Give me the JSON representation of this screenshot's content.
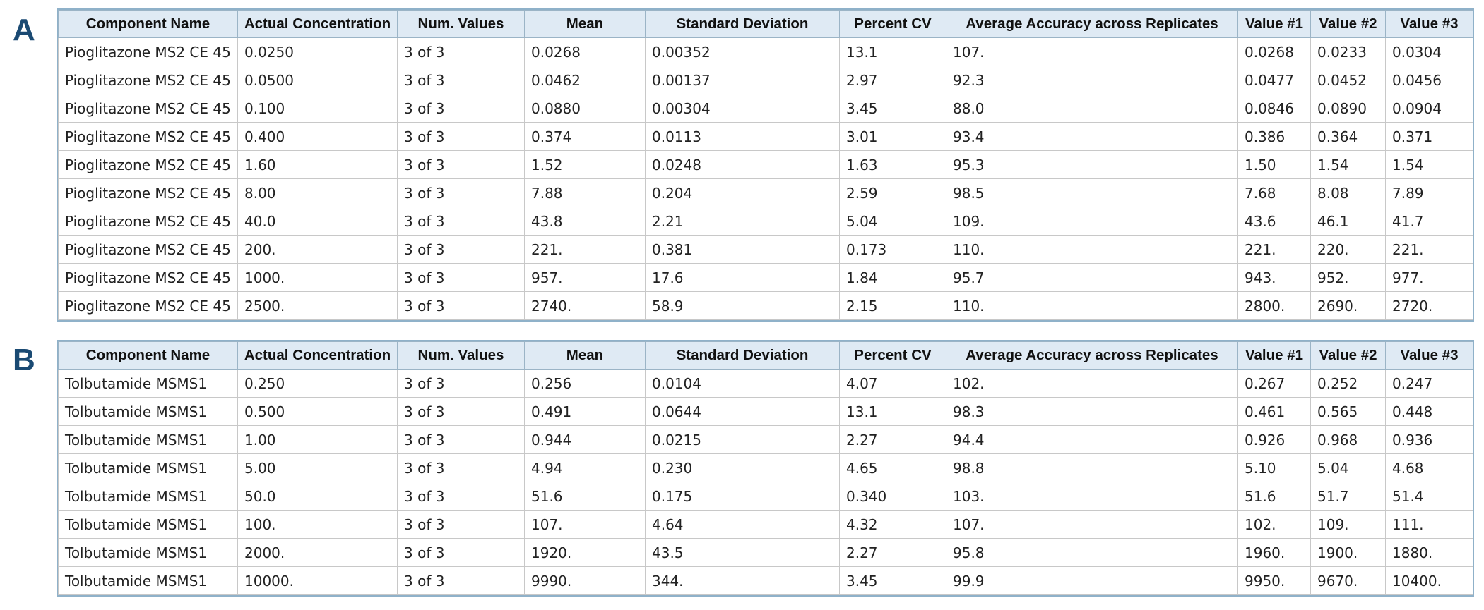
{
  "panels": [
    {
      "letter": "A",
      "columns": [
        "Component Name",
        "Actual Concentration",
        "Num. Values",
        "Mean",
        "Standard Deviation",
        "Percent CV",
        "Average Accuracy across Replicates",
        "Value #1",
        "Value #2",
        "Value #3"
      ],
      "rows": [
        [
          "Pioglitazone MS2 CE 45",
          "0.0250",
          "3 of 3",
          "0.0268",
          "0.00352",
          "13.1",
          "107.",
          "0.0268",
          "0.0233",
          "0.0304"
        ],
        [
          "Pioglitazone MS2 CE 45",
          "0.0500",
          "3 of 3",
          "0.0462",
          "0.00137",
          "2.97",
          "92.3",
          "0.0477",
          "0.0452",
          "0.0456"
        ],
        [
          "Pioglitazone MS2 CE 45",
          "0.100",
          "3 of 3",
          "0.0880",
          "0.00304",
          "3.45",
          "88.0",
          "0.0846",
          "0.0890",
          "0.0904"
        ],
        [
          "Pioglitazone MS2 CE 45",
          "0.400",
          "3 of 3",
          "0.374",
          "0.0113",
          "3.01",
          "93.4",
          "0.386",
          "0.364",
          "0.371"
        ],
        [
          "Pioglitazone MS2 CE 45",
          "1.60",
          "3 of 3",
          "1.52",
          "0.0248",
          "1.63",
          "95.3",
          "1.50",
          "1.54",
          "1.54"
        ],
        [
          "Pioglitazone MS2 CE 45",
          "8.00",
          "3 of 3",
          "7.88",
          "0.204",
          "2.59",
          "98.5",
          "7.68",
          "8.08",
          "7.89"
        ],
        [
          "Pioglitazone MS2 CE 45",
          "40.0",
          "3 of 3",
          "43.8",
          "2.21",
          "5.04",
          "109.",
          "43.6",
          "46.1",
          "41.7"
        ],
        [
          "Pioglitazone MS2 CE 45",
          "200.",
          "3 of 3",
          "221.",
          "0.381",
          "0.173",
          "110.",
          "221.",
          "220.",
          "221."
        ],
        [
          "Pioglitazone MS2 CE 45",
          "1000.",
          "3 of 3",
          "957.",
          "17.6",
          "1.84",
          "95.7",
          "943.",
          "952.",
          "977."
        ],
        [
          "Pioglitazone MS2 CE 45",
          "2500.",
          "3 of 3",
          "2740.",
          "58.9",
          "2.15",
          "110.",
          "2800.",
          "2690.",
          "2720."
        ]
      ]
    },
    {
      "letter": "B",
      "columns": [
        "Component Name",
        "Actual Concentration",
        "Num. Values",
        "Mean",
        "Standard Deviation",
        "Percent CV",
        "Average Accuracy across Replicates",
        "Value #1",
        "Value #2",
        "Value #3"
      ],
      "rows": [
        [
          "Tolbutamide MSMS1",
          "0.250",
          "3 of 3",
          "0.256",
          "0.0104",
          "4.07",
          "102.",
          "0.267",
          "0.252",
          "0.247"
        ],
        [
          "Tolbutamide MSMS1",
          "0.500",
          "3 of 3",
          "0.491",
          "0.0644",
          "13.1",
          "98.3",
          "0.461",
          "0.565",
          "0.448"
        ],
        [
          "Tolbutamide MSMS1",
          "1.00",
          "3 of 3",
          "0.944",
          "0.0215",
          "2.27",
          "94.4",
          "0.926",
          "0.968",
          "0.936"
        ],
        [
          "Tolbutamide MSMS1",
          "5.00",
          "3 of 3",
          "4.94",
          "0.230",
          "4.65",
          "98.8",
          "5.10",
          "5.04",
          "4.68"
        ],
        [
          "Tolbutamide MSMS1",
          "50.0",
          "3 of 3",
          "51.6",
          "0.175",
          "0.340",
          "103.",
          "51.6",
          "51.7",
          "51.4"
        ],
        [
          "Tolbutamide MSMS1",
          "100.",
          "3 of 3",
          "107.",
          "4.64",
          "4.32",
          "107.",
          "102.",
          "109.",
          "111."
        ],
        [
          "Tolbutamide MSMS1",
          "2000.",
          "3 of 3",
          "1920.",
          "43.5",
          "2.27",
          "95.8",
          "1960.",
          "1900.",
          "1880."
        ],
        [
          "Tolbutamide MSMS1",
          "10000.",
          "3 of 3",
          "9990.",
          "344.",
          "3.45",
          "99.9",
          "9950.",
          "9670.",
          "10400."
        ]
      ]
    }
  ]
}
